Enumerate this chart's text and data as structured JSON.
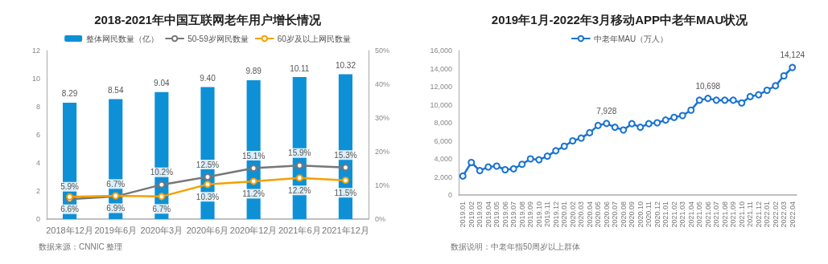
{
  "chart_data": [
    {
      "type": "bar",
      "title": "2018-2021年中国互联网老年用户增长情况",
      "categories": [
        "2018年12月",
        "2019年6月",
        "2020年3月",
        "2020年6月",
        "2020年12月",
        "2021年6月",
        "2021年12月"
      ],
      "series": [
        {
          "name": "整体网民数量（亿）",
          "color": "#0e90d6",
          "values": [
            8.29,
            8.54,
            9.04,
            9.4,
            9.89,
            10.11,
            10.32
          ],
          "value_labels": [
            "8.29",
            "8.54",
            "9.04",
            "9.40",
            "9.89",
            "10.11",
            "10.32"
          ]
        },
        {
          "name": "50-59岁网民数量",
          "type": "line",
          "axis": "y2",
          "color": "#777777",
          "values": [
            5.9,
            6.7,
            10.2,
            12.5,
            15.1,
            15.9,
            15.3
          ],
          "value_labels": [
            "5.9%",
            "6.7%",
            "10.2%",
            "12.5%",
            "15.1%",
            "15.9%",
            "15.3%"
          ]
        },
        {
          "name": "60岁及以上网民数量",
          "type": "line",
          "axis": "y2",
          "color": "#f5a000",
          "values": [
            6.6,
            6.9,
            6.7,
            10.3,
            11.2,
            12.2,
            11.5
          ],
          "value_labels": [
            "6.6%",
            "6.9%",
            "6.7%",
            "10.3%",
            "11.2%",
            "12.2%",
            "11.5%"
          ]
        }
      ],
      "ylim": [
        0,
        12
      ],
      "yticks": [
        0,
        2,
        4,
        6,
        8,
        10,
        12
      ],
      "y2lim": [
        0,
        50
      ],
      "y2ticks": [
        {
          "value": 0,
          "label": "0%"
        },
        {
          "value": 10,
          "label": "10%"
        },
        {
          "value": 20,
          "label": "20%"
        },
        {
          "value": 30,
          "label": "30%"
        },
        {
          "value": 40,
          "label": "40%"
        },
        {
          "value": 50,
          "label": "50%"
        }
      ],
      "marker": "circle",
      "line_style": "solid",
      "grid": false,
      "legend": "top",
      "annotations": [
        "数据来源：CNNIC 整理"
      ]
    },
    {
      "type": "line",
      "title": "2019年1月-2022年3月移动APP中老年MAU状况",
      "categories": [
        "2019.01",
        "2019.02",
        "2019.03",
        "2019.04",
        "2019.05",
        "2019.06",
        "2019.07",
        "2019.08",
        "2019.09",
        "2019.10",
        "2019.11",
        "2019.12",
        "2020.01",
        "2020.02",
        "2020.03",
        "2020.04",
        "2020.05",
        "2020.06",
        "2020.07",
        "2020.08",
        "2020.09",
        "2020.10",
        "2020.11",
        "2020.12",
        "2021.01",
        "2021.02",
        "2021.03",
        "2021.04",
        "2021.05",
        "2021.06",
        "2021.07",
        "2021.08",
        "2021.09",
        "2021.10",
        "2021.11",
        "2021.12",
        "2022.01",
        "2022.02",
        "2022.03",
        "2022.04"
      ],
      "series": [
        {
          "name": "中老年MAU（万人）",
          "color": "#1a73d0",
          "values": [
            2100,
            3600,
            2700,
            3100,
            3200,
            2800,
            2900,
            3400,
            4000,
            3900,
            4300,
            4900,
            5400,
            6000,
            6300,
            6900,
            7700,
            7928,
            7500,
            7200,
            7900,
            7500,
            7900,
            8000,
            8300,
            8600,
            8800,
            9400,
            10500,
            10698,
            10500,
            10500,
            10500,
            10200,
            10900,
            11100,
            11600,
            12100,
            13200,
            14124
          ],
          "value_labels": [
            null,
            null,
            null,
            null,
            null,
            null,
            null,
            null,
            null,
            null,
            null,
            null,
            null,
            null,
            null,
            null,
            null,
            "7,928",
            null,
            null,
            null,
            null,
            null,
            null,
            null,
            null,
            null,
            null,
            null,
            "10,698",
            null,
            null,
            null,
            null,
            null,
            null,
            null,
            null,
            null,
            "14,124"
          ]
        }
      ],
      "ylim": [
        0,
        16000
      ],
      "yticks": [
        {
          "value": 0,
          "label": "0"
        },
        {
          "value": 2000,
          "label": "2,000"
        },
        {
          "value": 4000,
          "label": "4,000"
        },
        {
          "value": 6000,
          "label": "6,000"
        },
        {
          "value": 8000,
          "label": "8,000"
        },
        {
          "value": 10000,
          "label": "10,000"
        },
        {
          "value": 12000,
          "label": "12,000"
        },
        {
          "value": 14000,
          "label": "14,000"
        },
        {
          "value": 16000,
          "label": "16,000"
        }
      ],
      "marker": "circle",
      "line_style": "solid",
      "grid": false,
      "legend": "top",
      "annotations": [
        "数据说明：中老年指50周岁以上群体"
      ]
    }
  ]
}
